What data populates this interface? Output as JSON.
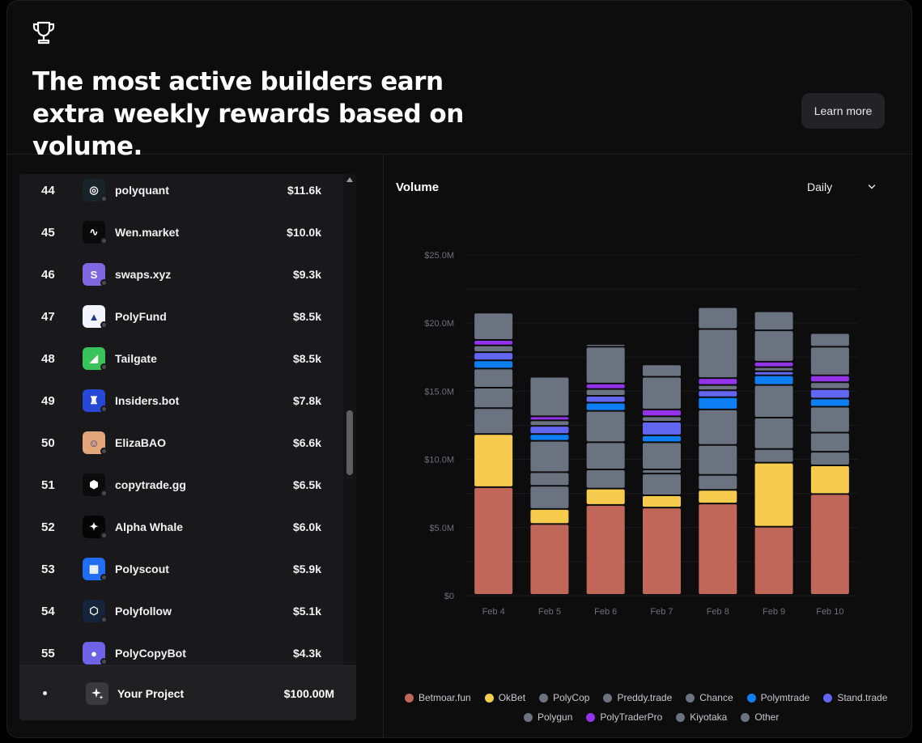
{
  "hero": {
    "title": "The most active builders earn extra weekly rewards based on volume.",
    "learn_more": "Learn more"
  },
  "leaderboard": {
    "rows": [
      {
        "rank": "44",
        "name": "polyquant",
        "value": "$11.6k",
        "icon": "polyquant-logo",
        "color": "#17242a"
      },
      {
        "rank": "45",
        "name": "Wen.market",
        "value": "$10.0k",
        "icon": "wen-market-logo",
        "color": "#0a0a0a"
      },
      {
        "rank": "46",
        "name": "swaps.xyz",
        "value": "$9.3k",
        "icon": "swaps-logo",
        "color": "#7f68e0"
      },
      {
        "rank": "47",
        "name": "PolyFund",
        "value": "$8.5k",
        "icon": "polyfund-logo",
        "color": "#f2f4ff"
      },
      {
        "rank": "48",
        "name": "Tailgate",
        "value": "$8.5k",
        "icon": "tailgate-logo",
        "color": "#39c35b"
      },
      {
        "rank": "49",
        "name": "Insiders.bot",
        "value": "$7.8k",
        "icon": "insiders-logo",
        "color": "#2747d6"
      },
      {
        "rank": "50",
        "name": "ElizaBAO",
        "value": "$6.6k",
        "icon": "elizabao-avatar",
        "color": "#e3a57a"
      },
      {
        "rank": "51",
        "name": "copytrade.gg",
        "value": "$6.5k",
        "icon": "copytrade-logo",
        "color": "#0b0b0b"
      },
      {
        "rank": "52",
        "name": "Alpha Whale",
        "value": "$6.0k",
        "icon": "alpha-whale-logo",
        "color": "#050505"
      },
      {
        "rank": "53",
        "name": "Polyscout",
        "value": "$5.9k",
        "icon": "polyscout-logo",
        "color": "#1f6ef5"
      },
      {
        "rank": "54",
        "name": "Polyfollow",
        "value": "$5.1k",
        "icon": "polyfollow-logo",
        "color": "#15243a"
      },
      {
        "rank": "55",
        "name": "PolyCopyBot",
        "value": "$4.3k",
        "icon": "polycopybot-logo",
        "color": "#6e63e6"
      }
    ],
    "your_project": {
      "name": "Your Project",
      "value": "$100.00M"
    }
  },
  "chart_panel": {
    "title": "Volume",
    "period": "Daily"
  },
  "chart_data": {
    "type": "bar",
    "stacked": true,
    "title": "",
    "xlabel": "",
    "ylabel": "",
    "ylim": [
      0,
      26000000
    ],
    "yticks": [
      "$0",
      "$5.0M",
      "$10.0M",
      "$15.0M",
      "$20.0M",
      "$25.0M"
    ],
    "ytick_values": [
      0,
      5000000,
      10000000,
      15000000,
      20000000,
      25000000
    ],
    "categories": [
      "Feb 4",
      "Feb 5",
      "Feb 6",
      "Feb 7",
      "Feb 8",
      "Feb 9",
      "Feb 10"
    ],
    "legend_position": "bottom",
    "series": [
      {
        "name": "Betmoar.fun",
        "color": "#c0675a",
        "values": [
          7.9,
          5.2,
          6.6,
          6.4,
          6.7,
          5.0,
          7.4
        ]
      },
      {
        "name": "OkBet",
        "color": "#f7cb4d",
        "values": [
          3.9,
          1.1,
          1.2,
          0.9,
          1.0,
          4.7,
          2.1
        ]
      },
      {
        "name": "PolyCop",
        "color": "#6b7280",
        "values": [
          1.9,
          1.7,
          1.4,
          1.6,
          1.1,
          1.0,
          1.0
        ]
      },
      {
        "name": "Preddy.trade",
        "color": "#6b7280",
        "values": [
          1.5,
          1.0,
          2.0,
          0.3,
          2.2,
          2.3,
          1.4
        ]
      },
      {
        "name": "Chance",
        "color": "#6b7280",
        "values": [
          1.4,
          2.3,
          2.3,
          2.0,
          2.6,
          2.4,
          1.9
        ]
      },
      {
        "name": "Polymtrade",
        "color": "#0d7ff2",
        "values": [
          0.6,
          0.5,
          0.6,
          0.5,
          0.9,
          0.7,
          0.6
        ]
      },
      {
        "name": "Stand.trade",
        "color": "#6366f1",
        "values": [
          0.6,
          0.6,
          0.5,
          1.0,
          0.5,
          0.3,
          0.7
        ]
      },
      {
        "name": "Polygun",
        "color": "#6b7280",
        "values": [
          0.5,
          0.4,
          0.5,
          0.4,
          0.4,
          0.3,
          0.5
        ]
      },
      {
        "name": "PolyTraderPro",
        "color": "#9333ea",
        "values": [
          0.4,
          0.3,
          0.4,
          0.5,
          0.5,
          0.4,
          0.5
        ]
      },
      {
        "name": "Kiyotaka",
        "color": "#6b7280",
        "values": [
          0.0,
          0.0,
          2.7,
          2.4,
          3.6,
          2.3,
          2.1
        ]
      },
      {
        "name": "Other",
        "color": "#6b7280",
        "values": [
          2.0,
          2.9,
          0.2,
          0.9,
          1.6,
          1.4,
          1.0
        ]
      }
    ],
    "value_unit": "millions USD"
  }
}
